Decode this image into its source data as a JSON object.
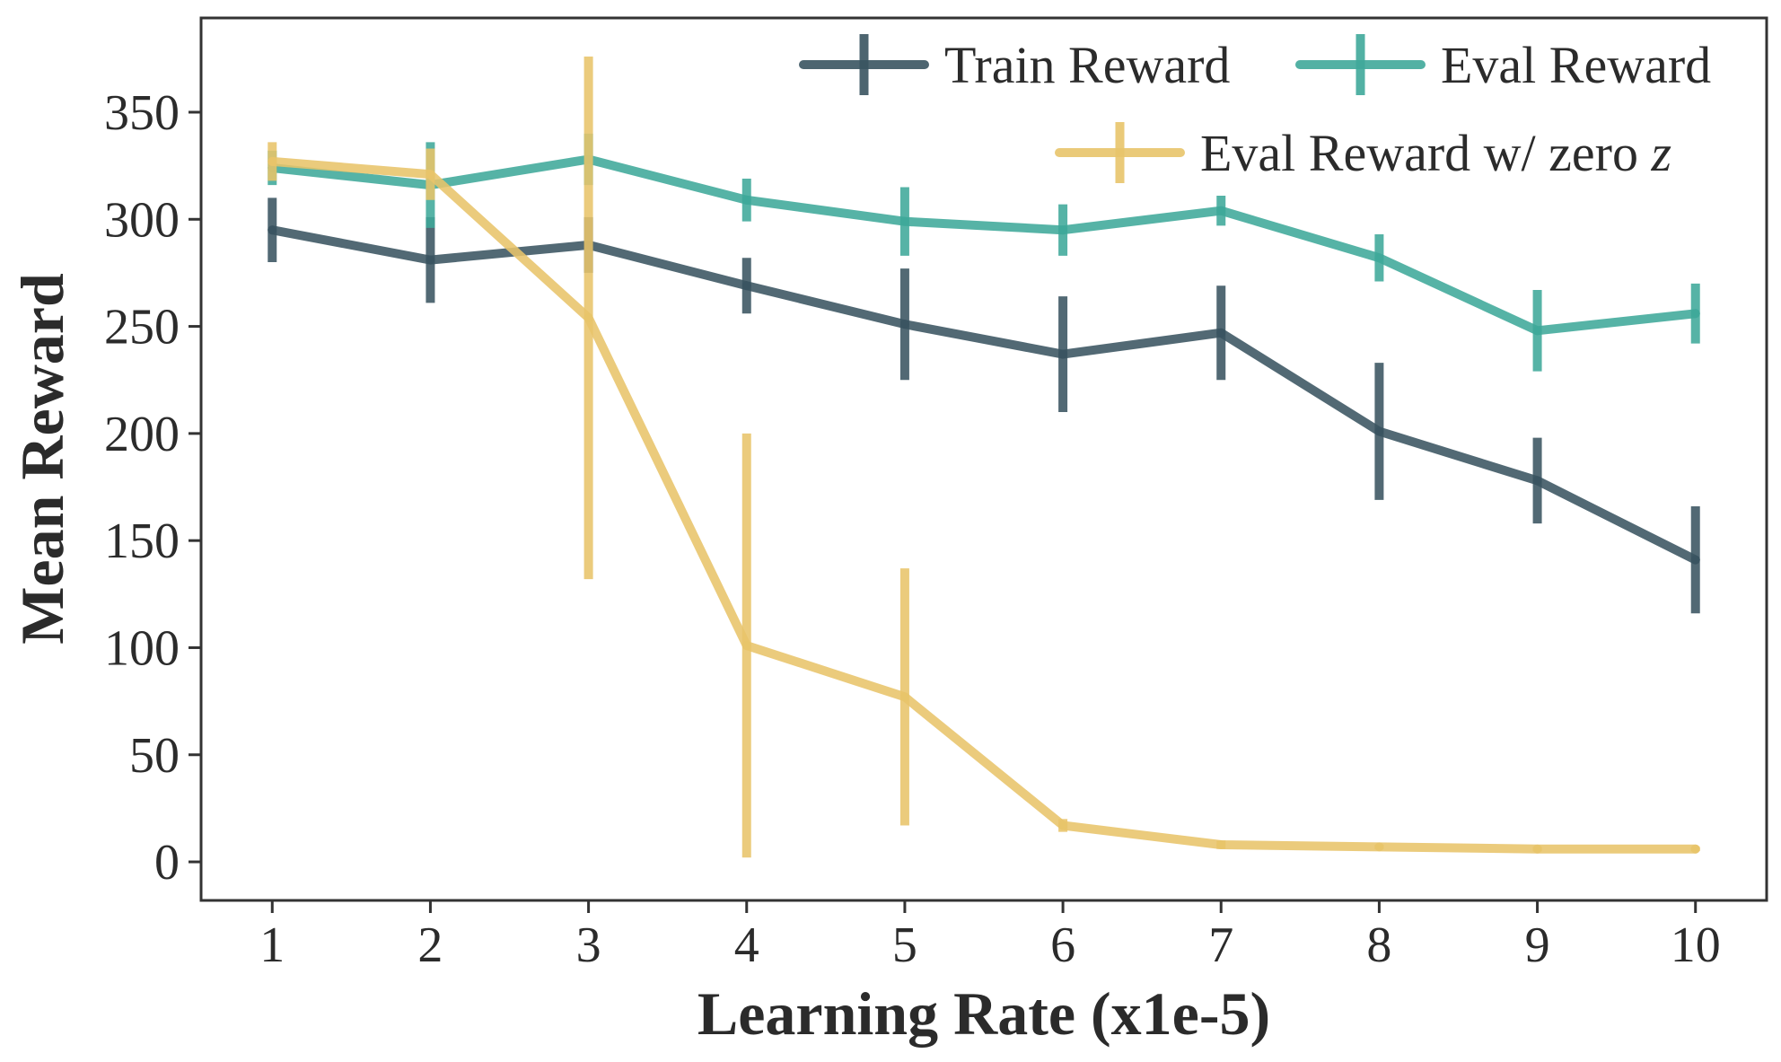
{
  "chart_data": {
    "type": "line",
    "xlabel": "Learning Rate (x1e-5)",
    "ylabel": "Mean Reward",
    "x": [
      1,
      2,
      3,
      4,
      5,
      6,
      7,
      8,
      9,
      10
    ],
    "xlim": [
      0.55,
      10.45
    ],
    "ylim": [
      -18,
      394
    ],
    "xticks": [
      "1",
      "2",
      "3",
      "4",
      "5",
      "6",
      "7",
      "8",
      "9",
      "10"
    ],
    "yticks": [
      0,
      50,
      100,
      150,
      200,
      250,
      300,
      350
    ],
    "grid": false,
    "legend_position": "top-right",
    "series": [
      {
        "name": "Train Reward",
        "color": "#3a5461",
        "values": [
          295,
          281,
          288,
          269,
          251,
          237,
          247,
          201,
          178,
          141
        ],
        "errors": [
          15,
          20,
          13,
          13,
          26,
          27,
          22,
          32,
          20,
          25
        ]
      },
      {
        "name": "Eval Reward",
        "color": "#3fa89a",
        "values": [
          324,
          316,
          328,
          309,
          299,
          295,
          304,
          282,
          248,
          256
        ],
        "errors": [
          8,
          20,
          12,
          10,
          16,
          12,
          7,
          11,
          19,
          14
        ]
      },
      {
        "name": "Eval Reward w/ zero",
        "name_symbol": "z",
        "color": "#e8c46a",
        "values": [
          327,
          321,
          254,
          101,
          77,
          17,
          8,
          7,
          6,
          6
        ],
        "errors": [
          9,
          12,
          122,
          99,
          60,
          3,
          2,
          1,
          1,
          1
        ]
      }
    ]
  }
}
